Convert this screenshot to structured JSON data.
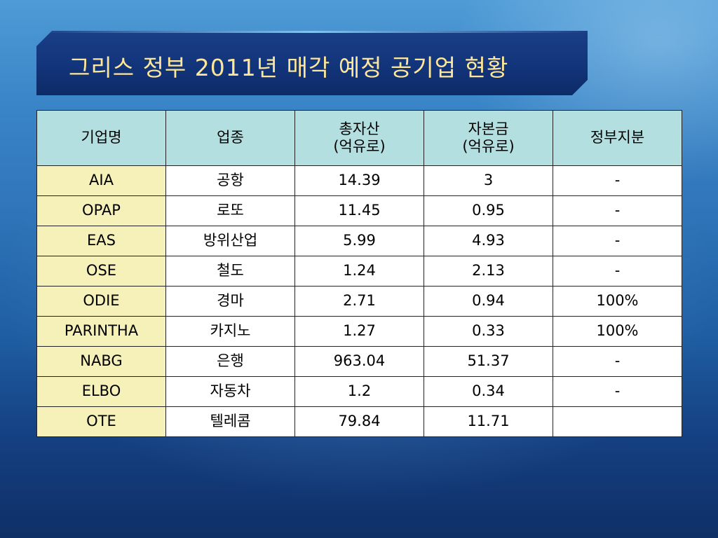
{
  "slide": {
    "title": "그리스 정부 2011년 매각 예정 공기업 현황"
  },
  "table": {
    "headers": [
      {
        "line1": "기업명",
        "line2": ""
      },
      {
        "line1": "업종",
        "line2": ""
      },
      {
        "line1": "총자산",
        "line2": "(억유로)"
      },
      {
        "line1": "자본금",
        "line2": "(억유로)"
      },
      {
        "line1": "정부지분",
        "line2": ""
      }
    ],
    "rows": [
      {
        "company": "AIA",
        "industry": "공항",
        "assets": "14.39",
        "capital": "3",
        "stake": "-"
      },
      {
        "company": "OPAP",
        "industry": "로또",
        "assets": "11.45",
        "capital": "0.95",
        "stake": "-"
      },
      {
        "company": "EAS",
        "industry": "방위산업",
        "assets": "5.99",
        "capital": "4.93",
        "stake": "-"
      },
      {
        "company": "OSE",
        "industry": "철도",
        "assets": "1.24",
        "capital": "2.13",
        "stake": "-"
      },
      {
        "company": "ODIE",
        "industry": "경마",
        "assets": "2.71",
        "capital": "0.94",
        "stake": "100%"
      },
      {
        "company": "PARINTHA",
        "industry": "카지노",
        "assets": "1.27",
        "capital": "0.33",
        "stake": "100%"
      },
      {
        "company": "NABG",
        "industry": "은행",
        "assets": "963.04",
        "capital": "51.37",
        "stake": "-"
      },
      {
        "company": "ELBO",
        "industry": "자동차",
        "assets": "1.2",
        "capital": "0.34",
        "stake": "-"
      },
      {
        "company": "OTE",
        "industry": "텔레콤",
        "assets": "79.84",
        "capital": "11.71",
        "stake": ""
      }
    ]
  },
  "colors": {
    "title_text": "#ffe79a",
    "header_bg": "#b4dfe0",
    "company_col_bg": "#f6f1b8",
    "cell_bg": "#ffffff",
    "banner_bg": "#12347a"
  }
}
